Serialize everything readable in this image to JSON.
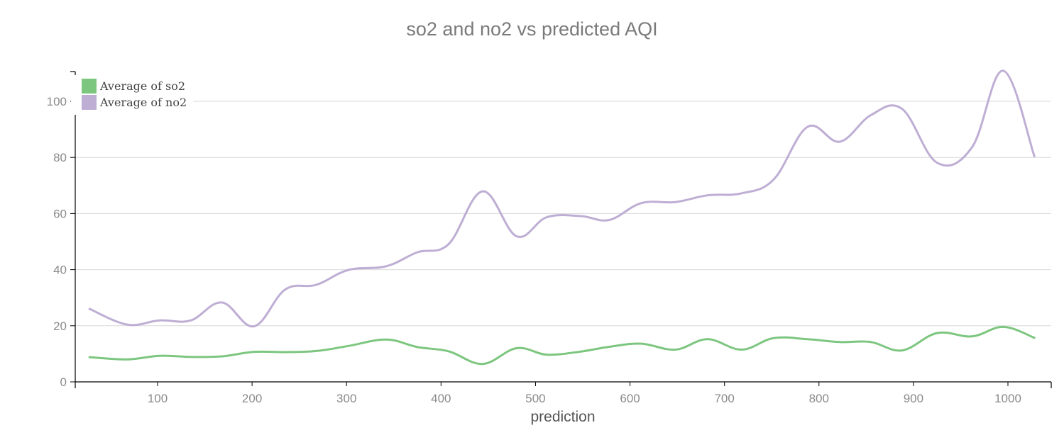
{
  "chart_data": {
    "type": "line",
    "title": "so2 and no2 vs predicted AQI",
    "xlabel": "prediction",
    "ylabel": "",
    "xlim": [
      20,
      1045
    ],
    "ylim": [
      0,
      110
    ],
    "xticks": [
      100,
      200,
      300,
      400,
      500,
      600,
      700,
      800,
      900,
      1000
    ],
    "yticks": [
      0,
      20,
      40,
      60,
      80,
      100
    ],
    "grid": "horizontal",
    "legend_position": "top-left",
    "x": [
      28,
      68,
      102,
      135,
      168,
      202,
      235,
      268,
      302,
      342,
      375,
      408,
      444,
      480,
      512,
      548,
      578,
      612,
      648,
      682,
      718,
      752,
      788,
      822,
      855,
      888,
      925,
      962,
      995,
      1028
    ],
    "series": [
      {
        "name": "Average of so2",
        "color": "#7dc67f",
        "values": [
          8.8,
          8.0,
          9.3,
          8.9,
          9.1,
          10.7,
          10.6,
          11.0,
          12.8,
          15.1,
          12.4,
          10.9,
          6.4,
          12.0,
          9.7,
          10.8,
          12.5,
          13.6,
          11.5,
          15.2,
          11.5,
          15.6,
          15.2,
          14.2,
          14.2,
          11.2,
          17.4,
          16.2,
          19.6,
          15.7
        ]
      },
      {
        "name": "Average of no2",
        "color": "#beaed4",
        "values": [
          26.0,
          20.4,
          21.9,
          21.9,
          28.3,
          19.8,
          32.9,
          34.6,
          39.9,
          41.2,
          46.2,
          49.1,
          67.9,
          51.9,
          58.7,
          59.1,
          57.7,
          63.7,
          64.1,
          66.5,
          67.2,
          72.1,
          90.9,
          85.6,
          95.1,
          97.3,
          78.1,
          83.6,
          110.9,
          80.4
        ]
      }
    ]
  }
}
